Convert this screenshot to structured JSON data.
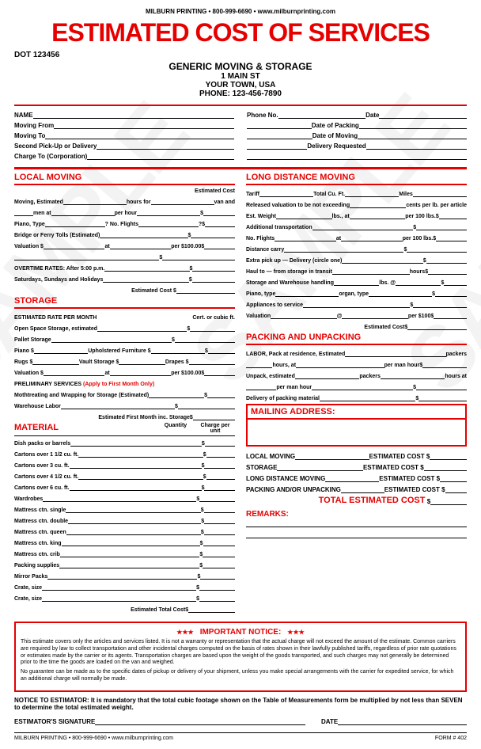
{
  "header": {
    "top_line": "MILBURN PRINTING  •  800-999-6690  •  www.milburnprinting.com",
    "title": "ESTIMATED COST OF SERVICES",
    "dot": "DOT 123456",
    "company": "GENERIC MOVING & STORAGE",
    "addr1": "1 MAIN ST",
    "addr2": "YOUR TOWN, USA",
    "phone": "PHONE: 123-456-7890"
  },
  "info": {
    "name": "NAME",
    "phone": "Phone No.",
    "date": "Date",
    "from": "Moving From",
    "pack": "Date of Packing",
    "to": "Moving To",
    "move": "Date of Moving",
    "second": "Second Pick-Up or Delivery",
    "delivery": "Delivery Requested",
    "charge": "Charge To (Corporation)"
  },
  "local": {
    "title": "LOCAL MOVING",
    "est_cost": "Estimated Cost",
    "l1": "Moving, Estimated",
    "l1a": "hours for",
    "l1b": "van and",
    "l2": "men at",
    "l2a": "per hour",
    "l3": "Piano, Type",
    "l3a": "? No. Flights",
    "l3b": "?",
    "l4": "Bridge or Ferry Tolls (Estimated)",
    "l5": "Valuation $",
    "l5a": "at",
    "l5b": "per $100.00",
    "l6": "OVERTIME RATES: After 5:00 p.m.",
    "l7": "Saturdays, Sundays and Holidays",
    "l8": "Estimated Cost"
  },
  "storage": {
    "title": "STORAGE",
    "rate": "ESTIMATED RATE PER MONTH",
    "cert": "Cert. or cubic ft.",
    "s1": "Open Space Storage, estimated",
    "s2": "Pallet Storage",
    "s3": "Piano $",
    "s3a": "Upholstered Furniture $",
    "s4": "Rugs $",
    "s4a": "Vault Storage $",
    "s4b": "Drapes $",
    "s5": "Valuation $",
    "s5a": "at",
    "s5b": "per $100.00",
    "prelim": "PRELIMINARY SERVICES",
    "prelim_note": "(Apply to First Month Only)",
    "s6": "Mothtreating and Wrapping for Storage (Estimated)",
    "s7": "Warehouse Labor",
    "s8": "Estimated First Month inc. Storage"
  },
  "material": {
    "title": "MATERIAL",
    "qty": "Quantity",
    "charge": "Charge per unit",
    "items": [
      "Dish packs or barrels",
      "Cartons over 1 1/2 cu. ft.",
      "Cartons over 3 cu. ft.",
      "Cartons over 4 1/2 cu. ft.",
      "Cartons over 6 cu. ft.",
      "Wardrobes",
      "Mattress ctn. single",
      "Mattress ctn. double",
      "Mattress ctn. queen",
      "Mattress ctn. king",
      "Mattress ctn. crib",
      "Packing supplies",
      "Mirror Packs",
      "Crate, size",
      "Crate, size"
    ],
    "total": "Estimated Total Cost"
  },
  "long": {
    "title": "LONG DISTANCE MOVING",
    "l1": "Tariff",
    "l1a": "Total Cu. Ft.",
    "l1b": "Miles",
    "l2": "Released valuation to be not exceeding",
    "l2a": "cents per lb. per article",
    "l3": "Est. Weight",
    "l3a": "lbs., at",
    "l3b": "per 100 lbs.",
    "l4": "Additional transportation",
    "l5": "No. Flights",
    "l5a": "at",
    "l5b": "per 100 lbs.",
    "l6": "Distance carry",
    "l7": "Extra pick up — Delivery (circle one)",
    "l8": "Haul to — from storage in transit",
    "l8a": "hours",
    "l9": "Storage and Warehouse handling",
    "l9a": "lbs. @",
    "l10": "Piano, type",
    "l10a": "organ, type",
    "l11": "Appliances to service",
    "l12": "Valuation",
    "l12a": "@",
    "l12b": "per $100",
    "l13": "Estimated Cost"
  },
  "packing": {
    "title": "PACKING AND UNPACKING",
    "p1": "LABOR, Pack at residence, Estimated",
    "p1a": "packers",
    "p2": "hours, at",
    "p2a": "per man hour",
    "p3": "Unpack, estimated",
    "p3a": "packers",
    "p3b": "hours at",
    "p4": "per man hour",
    "p5": "Delivery of packing material"
  },
  "mailing": {
    "title": "MAILING ADDRESS:"
  },
  "summary": {
    "s1": "LOCAL MOVING",
    "s2": "STORAGE",
    "s3": "LONG DISTANCE MOVING",
    "s4": "PACKING AND/OR UNPACKING",
    "cost": "ESTIMATED COST",
    "total": "TOTAL ESTIMATED COST"
  },
  "remarks": "REMARKS:",
  "notice": {
    "title": "IMPORTANT NOTICE:",
    "p1": "This estimate covers only the articles and services listed. It is not a warranty or representation that the actual charge will not exceed the amount of the estimate. Common carriers are required by law to collect transportation and other incidental charges computed on the basis of rates shown in their lawfully published tariffs, regardless of prior rate quotations or estimates made by the carrier or its agents. Transportation charges are based upon the weight of the goods transported, and such charges may not generally be determined prior to the time the goods are loaded on the van and weighed.",
    "p2": "No guarantee can be made as to the specific dates of pickup or delivery of your shipment, unless you make special arrangements with the carrier for expedited service, for which an additional charge will normally be made."
  },
  "note_est": "NOTICE TO ESTIMATOR: It is mandatory that the total cubic footage shown on the Table of Measurements form be multiplied by not less than SEVEN to determine the total estimated weight.",
  "sig": {
    "label": "ESTIMATOR'S SIGNATURE",
    "date": "DATE"
  },
  "footer": {
    "left": "MILBURN PRINTING • 800-999-6690 • www.milburnprinting.com",
    "right": "FORM # 402"
  },
  "colors": {
    "red": "#e60000",
    "black": "#000000",
    "wm": "rgba(200,200,200,0.22)"
  }
}
